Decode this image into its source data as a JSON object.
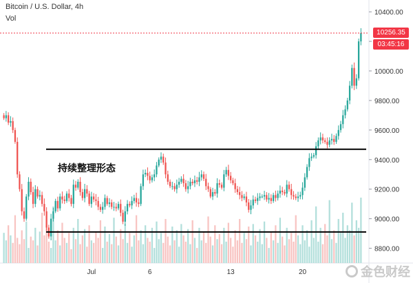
{
  "header": {
    "title": "Bitcoin / U.S. Dollar, 4h",
    "volume_label": "Vol"
  },
  "annotation": "持续整理形态",
  "watermark": "金色财经",
  "colors": {
    "up": "#26a69a",
    "down": "#ef5350",
    "up_vol": "#b2dfdb",
    "down_vol": "#f8c4c2",
    "last_price": "#f23645",
    "line": "#000000"
  },
  "chart_data": {
    "type": "candlestick",
    "symbol": "Bitcoin / U.S. Dollar",
    "timeframe": "4h",
    "y_axis": {
      "min": 8700,
      "max": 10480,
      "ticks": [
        "10400.00",
        "10200.00",
        "10000.00",
        "9800.00",
        "9600.00",
        "9400.00",
        "9200.00",
        "9000.00",
        "8800.00"
      ]
    },
    "x_axis": {
      "ticks": [
        {
          "label": "Jul",
          "bar": 39
        },
        {
          "label": "6",
          "bar": 65
        },
        {
          "label": "13",
          "bar": 101
        },
        {
          "label": "20",
          "bar": 133
        }
      ]
    },
    "last_price": {
      "value": 10256.35,
      "label": "10256.35",
      "countdown": "03:45:16"
    },
    "horizontal_lines": [
      9470,
      8910
    ],
    "closes": [
      9680,
      9700,
      9650,
      9660,
      9600,
      9520,
      9300,
      9200,
      9050,
      9000,
      9150,
      9250,
      9180,
      9100,
      9200,
      9150,
      9160,
      9100,
      9050,
      8940,
      8880,
      9000,
      9050,
      9120,
      9070,
      9150,
      9130,
      9120,
      9170,
      9140,
      9100,
      9230,
      9210,
      9250,
      9180,
      9140,
      9200,
      9170,
      9100,
      9150,
      9130,
      9120,
      9080,
      9060,
      9080,
      9140,
      9100,
      9110,
      9080,
      9080,
      9070,
      9100,
      9040,
      8980,
      9050,
      9100,
      9090,
      9120,
      9140,
      9110,
      9100,
      9220,
      9300,
      9310,
      9290,
      9260,
      9280,
      9300,
      9360,
      9400,
      9420,
      9380,
      9300,
      9250,
      9220,
      9220,
      9200,
      9230,
      9250,
      9270,
      9240,
      9200,
      9220,
      9250,
      9240,
      9260,
      9250,
      9280,
      9300,
      9270,
      9220,
      9200,
      9150,
      9180,
      9170,
      9240,
      9230,
      9210,
      9300,
      9330,
      9290,
      9260,
      9240,
      9200,
      9180,
      9160,
      9140,
      9150,
      9110,
      9060,
      9090,
      9130,
      9120,
      9140,
      9150,
      9150,
      9160,
      9130,
      9140,
      9120,
      9160,
      9140,
      9170,
      9190,
      9180,
      9170,
      9230,
      9200,
      9160,
      9150,
      9140,
      9150,
      9160,
      9210,
      9280,
      9350,
      9410,
      9420,
      9430,
      9490,
      9530,
      9550,
      9530,
      9520,
      9500,
      9530,
      9540,
      9520,
      9560,
      9600,
      9640,
      9700,
      9740,
      9800,
      9900,
      10020,
      9900,
      9950,
      10200,
      10256.35
    ],
    "volumes": [
      24,
      18,
      30,
      22,
      16,
      38,
      20,
      15,
      26,
      19,
      33,
      12,
      21,
      18,
      28,
      14,
      25,
      40,
      22,
      30,
      17,
      12,
      45,
      18,
      26,
      14,
      32,
      20,
      16,
      24,
      11,
      28,
      19,
      35,
      15,
      22,
      27,
      13,
      30,
      18,
      16,
      25,
      20,
      34,
      12,
      29,
      17,
      23,
      15,
      36,
      21,
      14,
      27,
      19,
      31,
      16,
      24,
      13,
      22,
      38,
      18,
      26,
      15,
      30,
      20,
      17,
      28,
      12,
      33,
      19,
      24,
      16,
      35,
      21,
      14,
      29,
      18,
      26,
      13,
      31,
      22,
      17,
      27,
      15,
      34,
      20,
      12,
      28,
      18,
      25,
      16,
      37,
      21,
      14,
      30,
      19,
      23,
      15,
      28,
      17,
      32,
      20,
      13,
      26,
      18,
      35,
      16,
      24,
      19,
      29,
      14,
      31,
      22,
      17,
      27,
      15,
      33,
      20,
      12,
      25,
      18,
      30,
      16,
      36,
      21,
      14,
      28,
      19,
      24,
      17,
      38,
      22,
      15,
      30,
      18,
      26,
      13,
      34,
      20,
      45,
      17,
      28,
      15,
      31,
      22,
      50,
      19,
      26,
      16,
      35,
      24,
      40,
      20,
      30,
      26,
      48,
      22,
      34,
      28,
      52
    ]
  }
}
